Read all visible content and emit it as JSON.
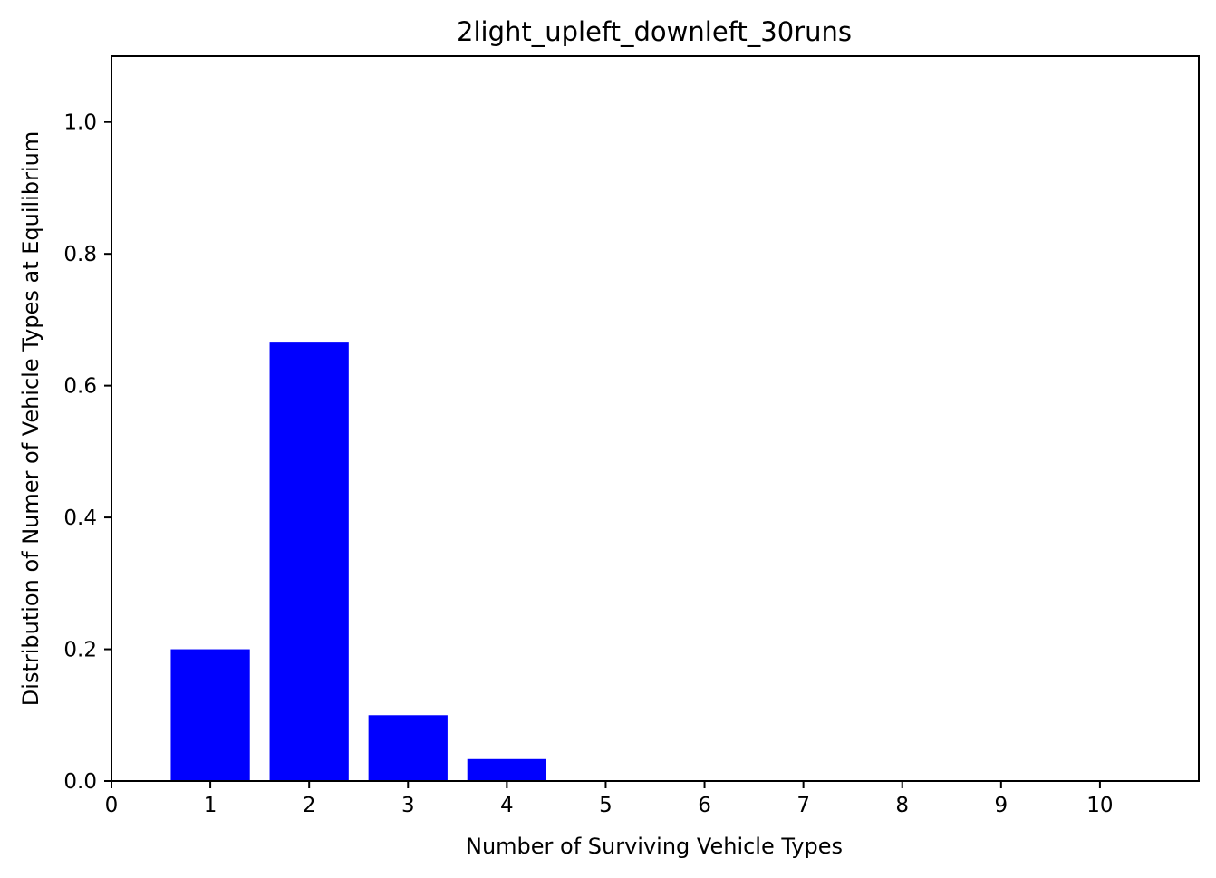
{
  "chart_data": {
    "type": "bar",
    "title": "2light_upleft_downleft_30runs",
    "xlabel": "Number of Surviving Vehicle Types",
    "ylabel": "Distribution of Numer of Vehicle Types at Equilibrium",
    "categories": [
      1,
      2,
      3,
      4,
      5,
      6,
      7,
      8,
      9,
      10
    ],
    "values": [
      0.2,
      0.6667,
      0.1,
      0.0333,
      0,
      0,
      0,
      0,
      0,
      0
    ],
    "bar_color": "#0000ff",
    "xlim": [
      0,
      11
    ],
    "ylim": [
      0,
      1.1
    ],
    "xticks": [
      "0",
      "1",
      "2",
      "3",
      "4",
      "5",
      "6",
      "7",
      "8",
      "9",
      "10"
    ],
    "yticks": [
      "0.0",
      "0.2",
      "0.4",
      "0.6",
      "0.8",
      "1.0"
    ],
    "grid": false,
    "legend": "none"
  }
}
